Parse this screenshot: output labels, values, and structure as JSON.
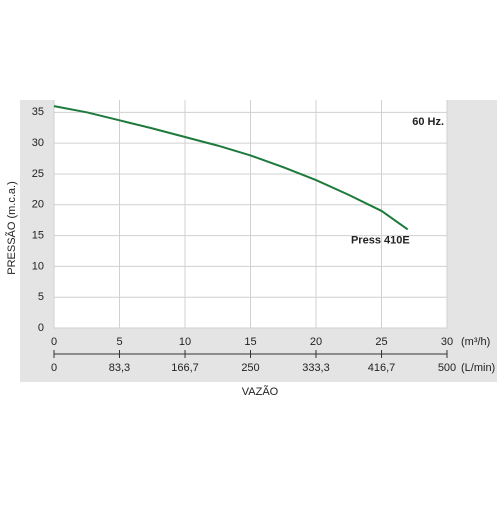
{
  "chart_data": {
    "type": "line",
    "y_label": "PRESSÃO (m.c.a.)",
    "x_label": "VAZÃO",
    "x_unit": "(m³/h)",
    "x2_unit": "(L/min)",
    "annotation": "60 Hz.",
    "x": [
      0,
      2.5,
      5,
      7.5,
      10,
      12.5,
      15,
      17.5,
      20,
      22.5,
      25,
      27
    ],
    "series": [
      {
        "name": "Press 410E",
        "color": "#1e7a3c",
        "values": [
          36,
          35,
          33.7,
          32.4,
          31,
          29.6,
          28,
          26.1,
          24,
          21.6,
          19,
          16
        ]
      }
    ],
    "xlim": [
      0,
      30
    ],
    "xticks": [
      0,
      5,
      10,
      15,
      20,
      25,
      30
    ],
    "x2lim": [
      0,
      500
    ],
    "x2ticks": [
      0,
      {
        "value": 83.3,
        "label": "83,3"
      },
      {
        "value": 166.7,
        "label": "166,7"
      },
      250,
      {
        "value": 333.3,
        "label": "333,3"
      },
      {
        "value": 416.7,
        "label": "416,7"
      },
      500
    ],
    "ylim": [
      0,
      37
    ],
    "yticks": [
      0,
      5,
      10,
      15,
      20,
      25,
      30,
      35
    ],
    "grid": true
  }
}
